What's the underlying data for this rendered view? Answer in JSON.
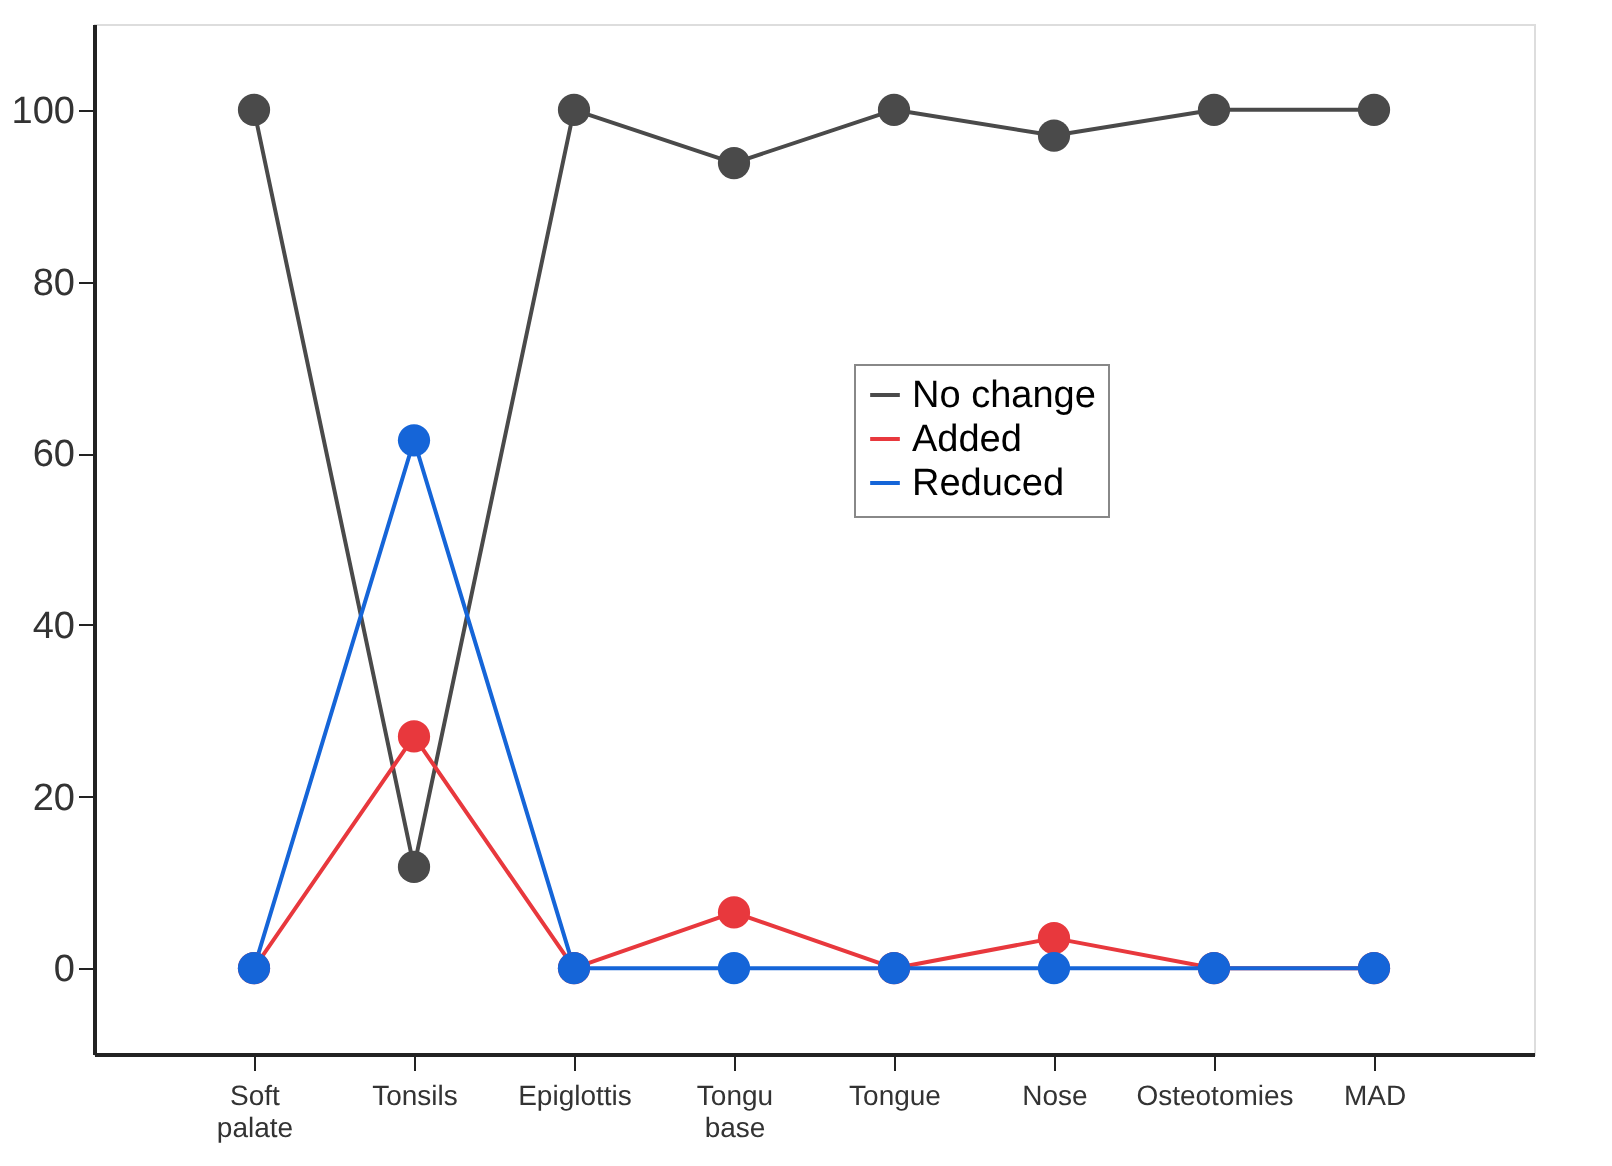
{
  "chart_data": {
    "type": "line",
    "categories": [
      "Soft\npalate",
      "Tonsils",
      "Epiglottis",
      "Tongu\nbase",
      "Tongue",
      "Nose",
      "Osteotomies",
      "MAD"
    ],
    "series": [
      {
        "name": "No change",
        "color": "#4a4a4a",
        "values": [
          100,
          11.8,
          100,
          93.8,
          100,
          97,
          100,
          100
        ]
      },
      {
        "name": "Added",
        "color": "#e8383d",
        "values": [
          0,
          27,
          0,
          6.5,
          0,
          3.5,
          0,
          0
        ]
      },
      {
        "name": "Reduced",
        "color": "#1565d8",
        "values": [
          0,
          61.5,
          0,
          0,
          0,
          0,
          0,
          0
        ]
      }
    ],
    "ylim": [
      -10,
      110
    ],
    "yticks": [
      0,
      20,
      40,
      60,
      80,
      100
    ],
    "grid": false,
    "legend": "center",
    "marker": "circle",
    "line_style": "solid"
  }
}
